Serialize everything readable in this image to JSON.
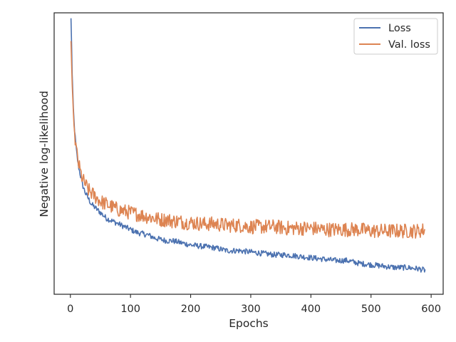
{
  "chart_data": {
    "type": "line",
    "title": "",
    "xlabel": "Epochs",
    "ylabel": "Negative log-likelihood",
    "xlim": [
      -27,
      620
    ],
    "ylim": [
      0,
      100
    ],
    "xticks": [
      0,
      100,
      200,
      300,
      400,
      500,
      600
    ],
    "yticks_shown": false,
    "grid": false,
    "legend": {
      "placement": "top-right"
    },
    "series": [
      {
        "name": "Loss",
        "color": "#4c72b0",
        "x": [
          1,
          2,
          3,
          5,
          7,
          10,
          13,
          16,
          20,
          25,
          30,
          35,
          40,
          50,
          60,
          70,
          80,
          90,
          100,
          110,
          120,
          130,
          140,
          150,
          160,
          170,
          180,
          190,
          200,
          220,
          240,
          260,
          280,
          300,
          320,
          340,
          360,
          380,
          400,
          420,
          440,
          460,
          480,
          500,
          520,
          540,
          560,
          580,
          590
        ],
        "y": [
          98,
          89,
          78,
          66,
          58,
          51,
          46,
          43,
          39,
          36,
          34,
          32,
          31,
          29,
          27,
          26,
          25,
          24,
          23,
          22,
          21.5,
          21,
          20,
          19.5,
          19,
          19,
          18.5,
          18,
          17.5,
          17,
          16.5,
          15.5,
          15.5,
          15,
          14.5,
          14,
          14,
          13.5,
          13,
          12.5,
          12,
          12,
          11,
          10.5,
          10,
          9.5,
          9.5,
          9,
          8.5
        ]
      },
      {
        "name": "Val. loss",
        "color": "#dd8452",
        "x": [
          1,
          2,
          3,
          5,
          7,
          10,
          13,
          16,
          20,
          25,
          30,
          35,
          40,
          50,
          60,
          70,
          80,
          90,
          100,
          110,
          120,
          130,
          140,
          150,
          160,
          170,
          180,
          190,
          200,
          220,
          240,
          260,
          280,
          300,
          320,
          340,
          360,
          380,
          400,
          420,
          440,
          460,
          480,
          500,
          520,
          540,
          560,
          580,
          590
        ],
        "y": [
          90,
          82,
          74,
          64,
          57,
          51,
          47,
          44,
          41,
          39,
          37,
          36,
          35,
          33,
          32,
          31,
          30,
          29.5,
          29,
          28.5,
          28,
          27.5,
          27,
          26.5,
          26.5,
          26,
          26,
          25.5,
          25.5,
          25,
          25,
          24.5,
          24.5,
          24,
          24,
          24,
          23.5,
          23.5,
          23.5,
          23,
          23,
          23,
          23,
          22.5,
          22.5,
          22.5,
          22.5,
          22.5,
          23
        ]
      }
    ]
  }
}
